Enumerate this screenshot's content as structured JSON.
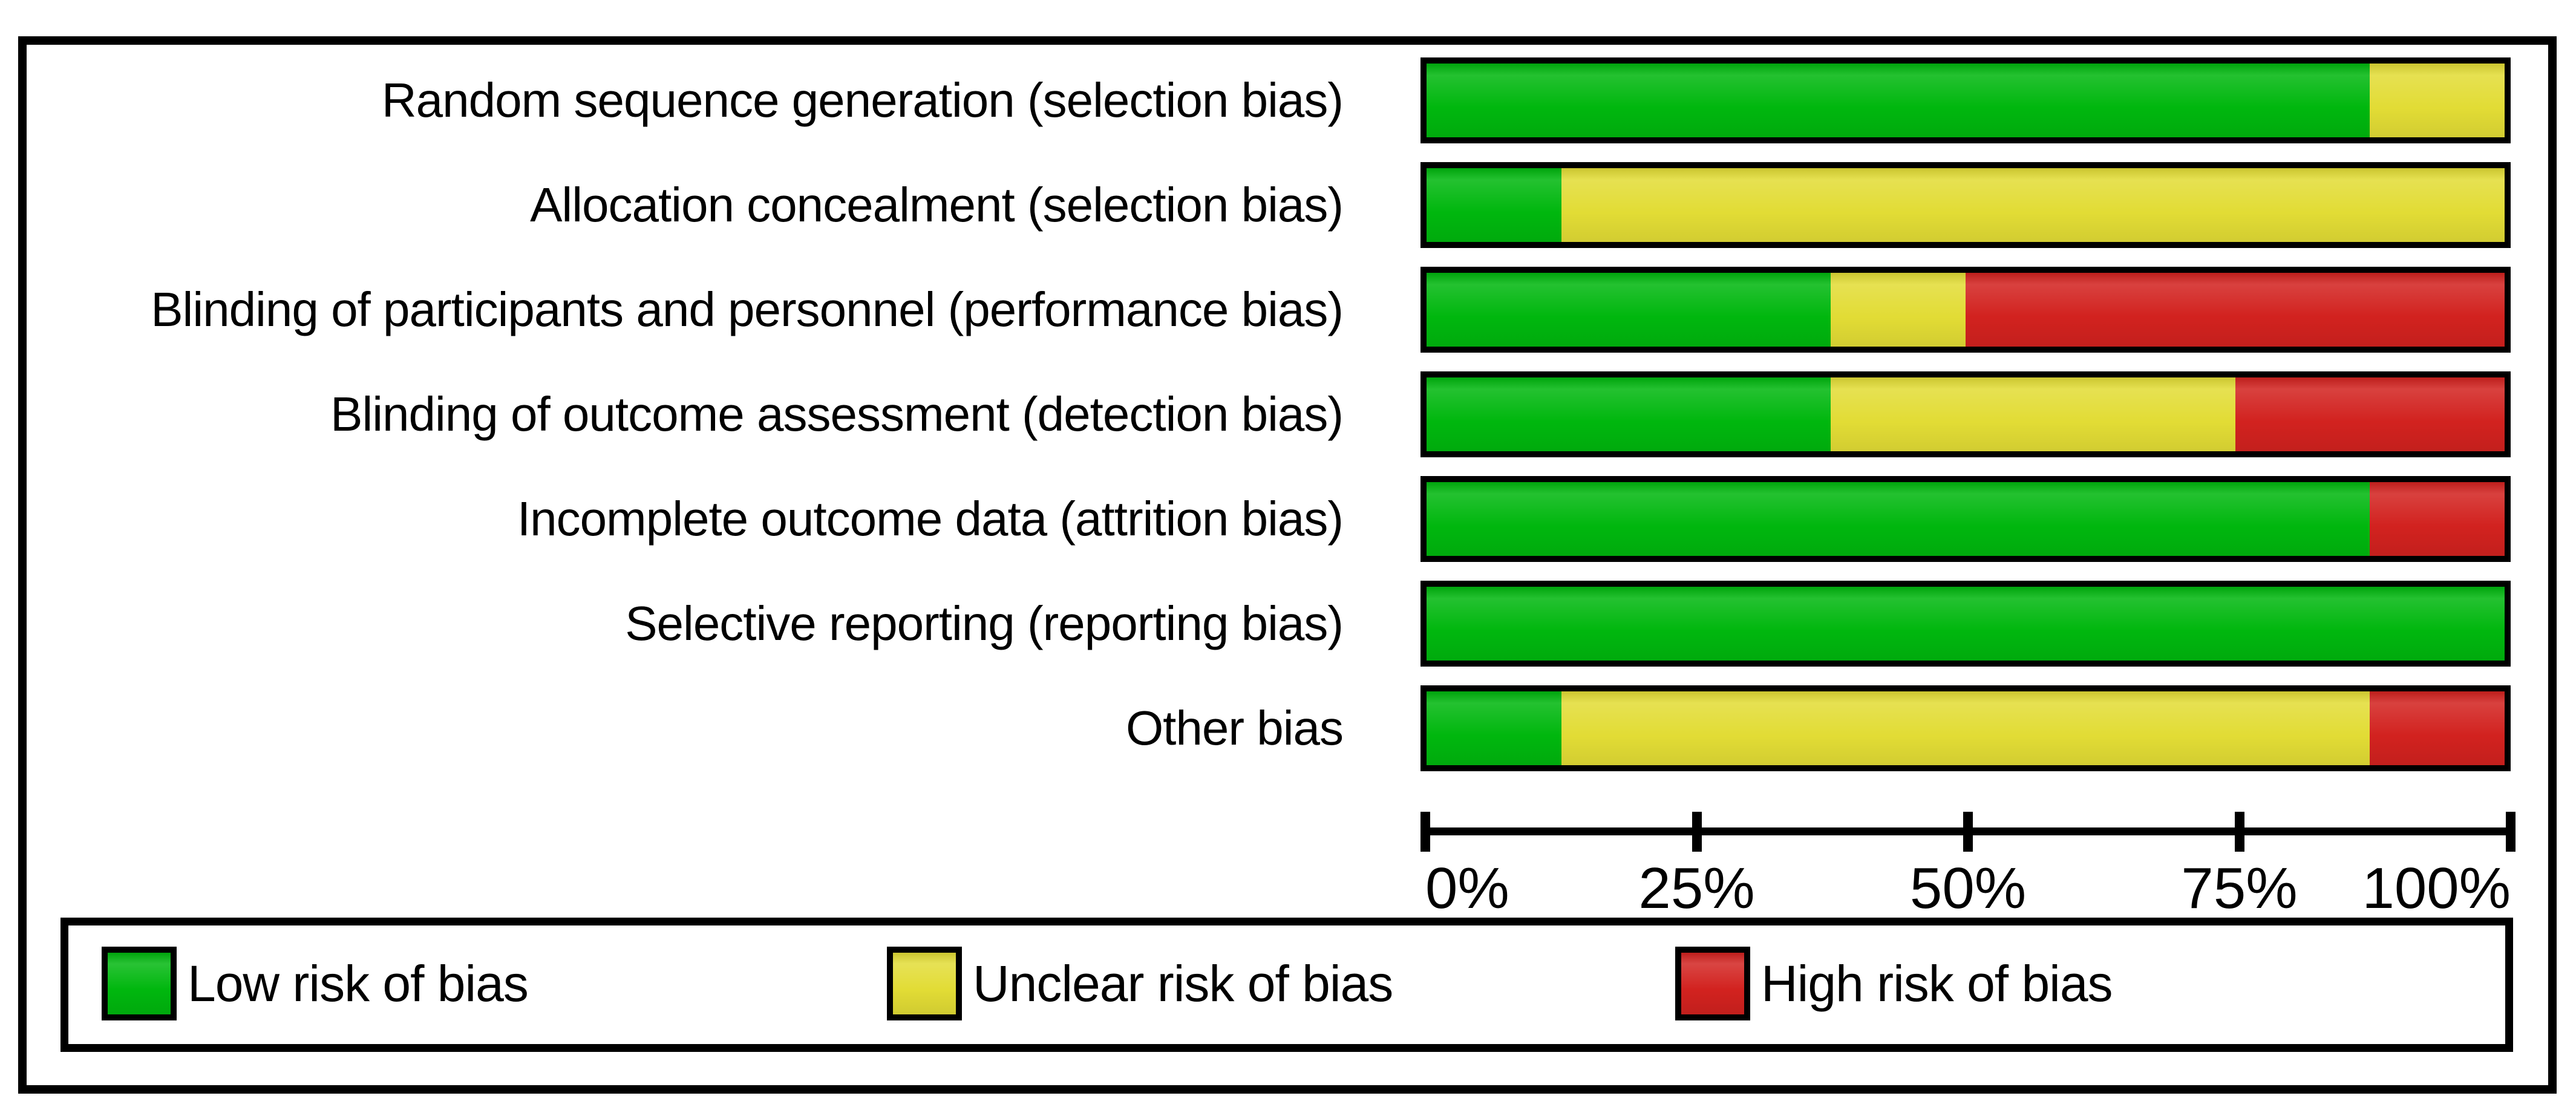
{
  "chart_data": {
    "type": "bar",
    "orientation": "horizontal",
    "stacked": true,
    "title": "",
    "xlabel": "",
    "ylabel": "",
    "unit": "%",
    "xlim": [
      0,
      100
    ],
    "grid": false,
    "legend_position": "bottom",
    "categories": [
      "Random sequence generation (selection bias)",
      "Allocation concealment (selection bias)",
      "Blinding of participants and personnel (performance bias)",
      "Blinding of outcome assessment (detection bias)",
      "Incomplete outcome data (attrition bias)",
      "Selective reporting (reporting bias)",
      "Other bias"
    ],
    "series": [
      {
        "name": "Low risk of bias",
        "color": "#00b70e",
        "values": [
          87.5,
          12.5,
          37.5,
          37.5,
          87.5,
          100,
          12.5
        ]
      },
      {
        "name": "Unclear risk of bias",
        "color": "#e2dc35",
        "values": [
          12.5,
          87.5,
          12.5,
          37.5,
          0,
          0,
          75
        ]
      },
      {
        "name": "High risk of bias",
        "color": "#d2221f",
        "values": [
          0,
          0,
          50,
          25,
          12.5,
          0,
          12.5
        ]
      }
    ],
    "x_ticks": [
      {
        "value": 0,
        "label": "0%"
      },
      {
        "value": 25,
        "label": "25%"
      },
      {
        "value": 50,
        "label": "50%"
      },
      {
        "value": 75,
        "label": "75%"
      },
      {
        "value": 100,
        "label": "100%"
      }
    ]
  },
  "colors": {
    "background": "#ffffff",
    "frame_border": "#000000",
    "bar_border": "#000000",
    "text": "#000000"
  }
}
